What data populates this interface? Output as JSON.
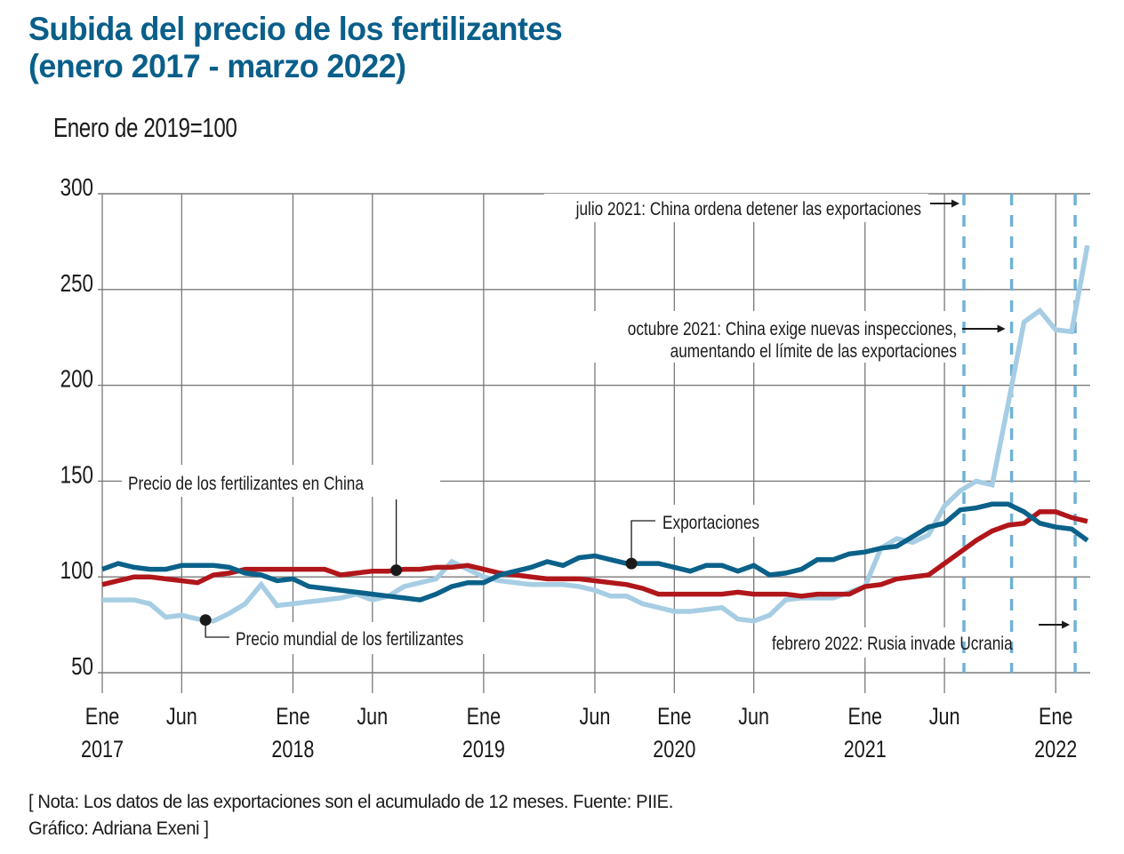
{
  "title": {
    "line1": "Subida del precio de los fertilizantes",
    "line2": "(enero 2017 - marzo 2022)"
  },
  "subtitle": "Enero de 2019=100",
  "note": {
    "line1": "[ Nota: Los datos de las exportaciones son el acumulado de 12 meses. Fuente: PIIE.",
    "line2": "Gráfico: Adriana Exeni ]"
  },
  "colors": {
    "title": "#0a5f8a",
    "exports": "#0b6189",
    "china_price": "#b0161a",
    "world_price": "#a6cde3",
    "event_line": "#6fb2d6",
    "grid": "#7a7a7a"
  },
  "chart_data": {
    "type": "line",
    "title": "Subida del precio de los fertilizantes (enero 2017 - marzo 2022)",
    "ylabel": "Enero de 2019=100",
    "xlabel": "",
    "ylim": [
      50,
      300
    ],
    "yticks": [
      50,
      100,
      150,
      200,
      250,
      300
    ],
    "grid": true,
    "x_start": "2017-01",
    "x_end": "2022-03",
    "x_unit": "month",
    "xticks": [
      {
        "month_index": 0,
        "label1": "Ene",
        "label2": "2017"
      },
      {
        "month_index": 5,
        "label1": "Jun",
        "label2": ""
      },
      {
        "month_index": 12,
        "label1": "Ene",
        "label2": "2018"
      },
      {
        "month_index": 17,
        "label1": "Jun",
        "label2": ""
      },
      {
        "month_index": 24,
        "label1": "Ene",
        "label2": "2019"
      },
      {
        "month_index": 31,
        "label1": "Jun",
        "label2": ""
      },
      {
        "month_index": 36,
        "label1": "Ene",
        "label2": "2020"
      },
      {
        "month_index": 41,
        "label1": "Jun",
        "label2": ""
      },
      {
        "month_index": 48,
        "label1": "Ene",
        "label2": "2021"
      },
      {
        "month_index": 53,
        "label1": "Jun",
        "label2": ""
      },
      {
        "month_index": 60,
        "label1": "Ene",
        "label2": "2022"
      }
    ],
    "series": [
      {
        "name": "Precio mundial de los fertilizantes",
        "key": "world_price",
        "values": [
          88,
          88,
          88,
          86,
          79,
          80,
          78,
          77,
          81,
          86,
          96,
          85,
          86,
          87,
          88,
          89,
          91,
          88,
          90,
          95,
          97,
          99,
          108,
          104,
          100,
          98,
          97,
          96,
          96,
          96,
          95,
          93,
          90,
          90,
          86,
          84,
          82,
          82,
          83,
          84,
          78,
          77,
          80,
          88,
          89,
          89,
          89,
          92,
          95,
          115,
          120,
          118,
          122,
          137,
          145,
          150,
          148,
          190,
          233,
          239,
          229,
          228,
          273
        ]
      },
      {
        "name": "Precio de los fertilizantes en China",
        "key": "china_price",
        "values": [
          96,
          98,
          100,
          100,
          99,
          98,
          97,
          101,
          102,
          104,
          104,
          104,
          104,
          104,
          104,
          101,
          102,
          103,
          103,
          104,
          104,
          105,
          105,
          106,
          104,
          102,
          101,
          100,
          99,
          99,
          99,
          98,
          97,
          96,
          94,
          91,
          91,
          91,
          91,
          91,
          92,
          91,
          91,
          91,
          90,
          91,
          91,
          91,
          95,
          96,
          99,
          100,
          101,
          107,
          113,
          119,
          124,
          127,
          128,
          134,
          134,
          131,
          129
        ]
      },
      {
        "name": "Exportaciones",
        "key": "exports",
        "values": [
          104,
          107,
          105,
          104,
          104,
          106,
          106,
          106,
          105,
          102,
          101,
          98,
          99,
          95,
          94,
          93,
          92,
          91,
          90,
          89,
          88,
          91,
          95,
          97,
          97,
          101,
          103,
          105,
          108,
          106,
          110,
          111,
          109,
          107,
          107,
          107,
          105,
          103,
          106,
          106,
          103,
          106,
          101,
          102,
          104,
          109,
          109,
          112,
          113,
          115,
          116,
          121,
          126,
          128,
          135,
          136,
          138,
          138,
          134,
          128,
          126,
          125,
          119
        ]
      }
    ],
    "label_annotations": [
      {
        "series": "china_price",
        "text": "Precio de los fertilizantes en China",
        "month_index": 18.5
      },
      {
        "series": "world_price",
        "text": "Precio mundial de los fertilizantes",
        "month_index": 6.5
      },
      {
        "series": "exports",
        "text": "Exportaciones",
        "month_index": 33.3
      }
    ],
    "event_annotations": [
      {
        "month_index": 54,
        "lines": [
          "julio 2021: China ordena detener las exportaciones"
        ]
      },
      {
        "month_index": 57,
        "lines": [
          "octubre 2021: China exige nuevas inspecciones,",
          "aumentando el límite de las exportaciones"
        ]
      },
      {
        "month_index": 61,
        "lines": [
          "febrero 2022: Rusia invade Ucrania"
        ]
      }
    ]
  }
}
